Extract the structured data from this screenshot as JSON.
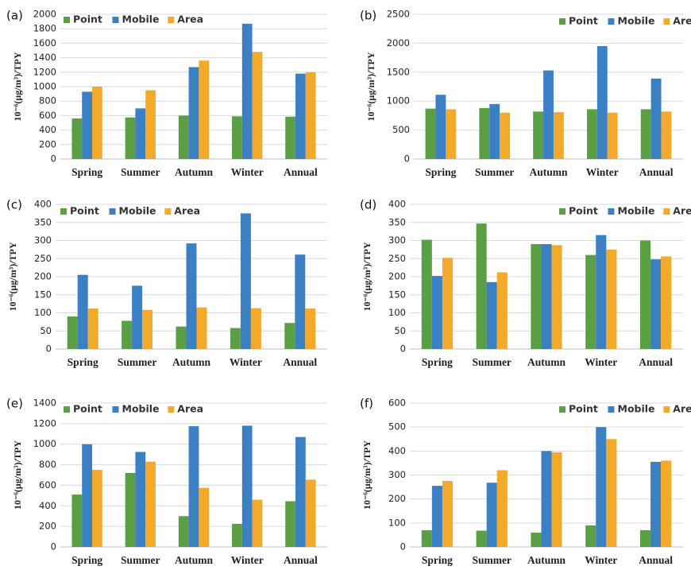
{
  "colors": {
    "Point": "#5b9f45",
    "Mobile": "#3c80c4",
    "Area": "#f3aa2a"
  },
  "chart_data": [
    {
      "type": "bar",
      "panel": "(a)",
      "categories": [
        "Spring",
        "Summer",
        "Autumn",
        "Winter",
        "Annual"
      ],
      "ylabel": "10⁻⁶(μg/m³)/TPY",
      "ylim": [
        0,
        2000
      ],
      "yticks": [
        0,
        200,
        400,
        600,
        800,
        1000,
        1200,
        1400,
        1600,
        1800,
        2000
      ],
      "legend": "top-left",
      "series": [
        {
          "name": "Point",
          "values": [
            560,
            575,
            600,
            590,
            585
          ]
        },
        {
          "name": "Mobile",
          "values": [
            930,
            700,
            1270,
            1870,
            1180
          ]
        },
        {
          "name": "Area",
          "values": [
            1000,
            950,
            1360,
            1480,
            1200
          ]
        }
      ]
    },
    {
      "type": "bar",
      "panel": "(b)",
      "categories": [
        "Spring",
        "Summer",
        "Autumn",
        "Winter",
        "Annual"
      ],
      "ylabel": "10⁻⁶(μg/m³)/TPY",
      "ylim": [
        0,
        2500
      ],
      "yticks": [
        0,
        500,
        1000,
        1500,
        2000,
        2500
      ],
      "legend": "top-right",
      "series": [
        {
          "name": "Point",
          "values": [
            870,
            880,
            820,
            860,
            860
          ]
        },
        {
          "name": "Mobile",
          "values": [
            1110,
            950,
            1530,
            1950,
            1390
          ]
        },
        {
          "name": "Area",
          "values": [
            860,
            800,
            810,
            800,
            820
          ]
        }
      ]
    },
    {
      "type": "bar",
      "panel": "(c)",
      "categories": [
        "Spring",
        "Summer",
        "Autumn",
        "Winter",
        "Annual"
      ],
      "ylabel": "10⁻⁶(μg/m³)/TPY",
      "ylim": [
        0,
        400
      ],
      "yticks": [
        0,
        50,
        100,
        150,
        200,
        250,
        300,
        350,
        400
      ],
      "legend": "top-left",
      "series": [
        {
          "name": "Point",
          "values": [
            90,
            78,
            62,
            58,
            72
          ]
        },
        {
          "name": "Mobile",
          "values": [
            205,
            175,
            292,
            375,
            261
          ]
        },
        {
          "name": "Area",
          "values": [
            112,
            108,
            115,
            113,
            112
          ]
        }
      ]
    },
    {
      "type": "bar",
      "panel": "(d)",
      "categories": [
        "Spring",
        "Summer",
        "Autumn",
        "Winter",
        "Annual"
      ],
      "ylabel": "10⁻⁶(μg/m³)/TPY",
      "ylim": [
        0,
        400
      ],
      "yticks": [
        0,
        50,
        100,
        150,
        200,
        250,
        300,
        350,
        400
      ],
      "legend": "top-right",
      "series": [
        {
          "name": "Point",
          "values": [
            302,
            347,
            290,
            260,
            300
          ]
        },
        {
          "name": "Mobile",
          "values": [
            202,
            185,
            290,
            315,
            248
          ]
        },
        {
          "name": "Area",
          "values": [
            252,
            212,
            287,
            275,
            256
          ]
        }
      ]
    },
    {
      "type": "bar",
      "panel": "(e)",
      "categories": [
        "Spring",
        "Summer",
        "Autumn",
        "Winter",
        "Annual"
      ],
      "ylabel": "10⁻⁶(μg/m³)/TPY",
      "ylim": [
        0,
        1400
      ],
      "yticks": [
        0,
        200,
        400,
        600,
        800,
        1000,
        1200,
        1400
      ],
      "legend": "top-left",
      "series": [
        {
          "name": "Point",
          "values": [
            510,
            720,
            300,
            225,
            445
          ]
        },
        {
          "name": "Mobile",
          "values": [
            1000,
            925,
            1175,
            1180,
            1070
          ]
        },
        {
          "name": "Area",
          "values": [
            750,
            830,
            575,
            460,
            655
          ]
        }
      ]
    },
    {
      "type": "bar",
      "panel": "(f)",
      "categories": [
        "Spring",
        "Summer",
        "Autumn",
        "Winter",
        "Annual"
      ],
      "ylabel": "10⁻⁶(μg/m³)/TPY",
      "ylim": [
        0,
        600
      ],
      "yticks": [
        0,
        100,
        200,
        300,
        400,
        500,
        600
      ],
      "legend": "top-right",
      "series": [
        {
          "name": "Point",
          "values": [
            70,
            68,
            60,
            90,
            70
          ]
        },
        {
          "name": "Mobile",
          "values": [
            255,
            268,
            400,
            500,
            355
          ]
        },
        {
          "name": "Area",
          "values": [
            275,
            320,
            395,
            450,
            360
          ]
        }
      ]
    }
  ]
}
